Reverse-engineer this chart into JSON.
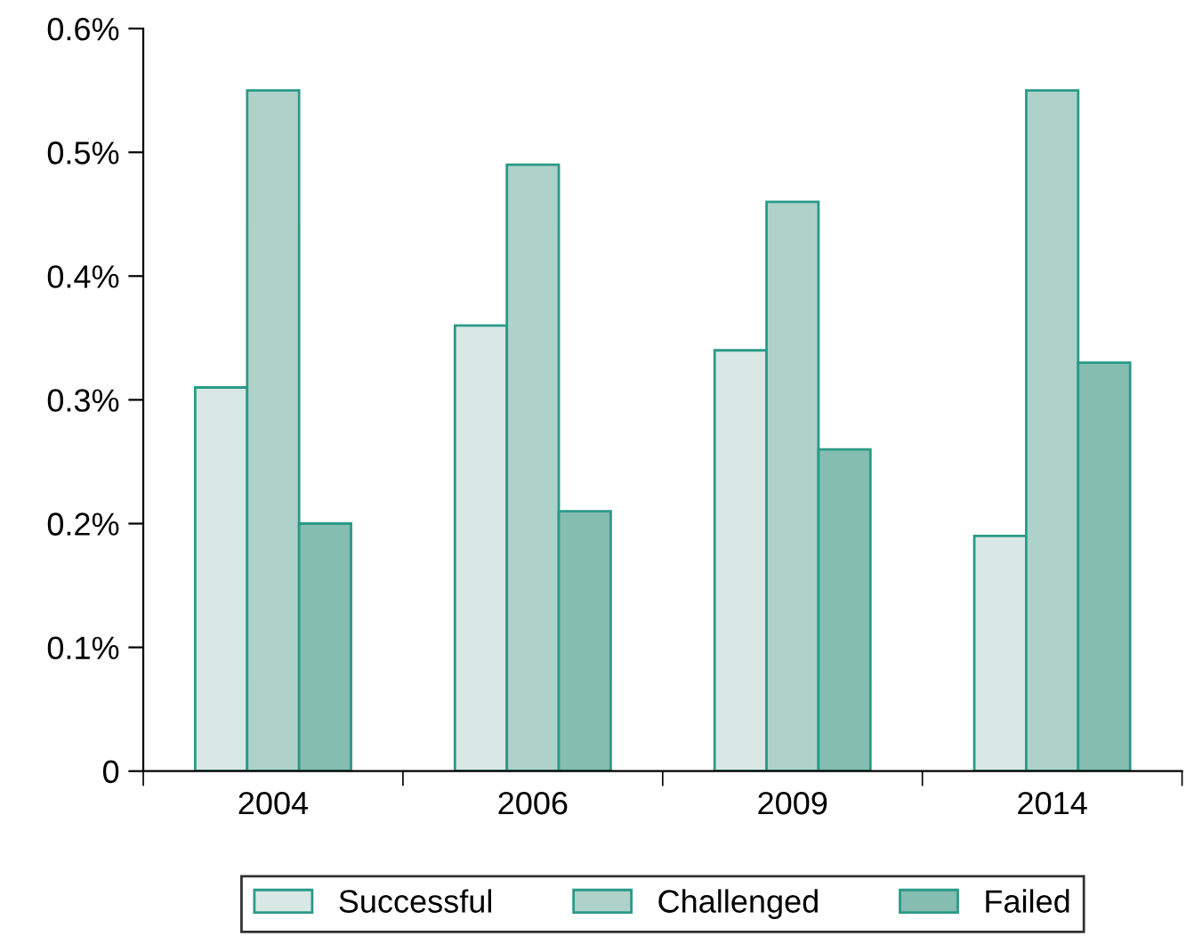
{
  "chart_data": {
    "type": "bar",
    "categories": [
      "2004",
      "2006",
      "2009",
      "2014"
    ],
    "series": [
      {
        "name": "Successful",
        "color": "#d9e8e4",
        "values": [
          0.31,
          0.36,
          0.34,
          0.19
        ]
      },
      {
        "name": "Challenged",
        "color": "#aed2c9",
        "values": [
          0.55,
          0.49,
          0.46,
          0.55
        ]
      },
      {
        "name": "Failed",
        "color": "#85bdb1",
        "values": [
          0.2,
          0.21,
          0.26,
          0.33
        ]
      }
    ],
    "ylim": [
      0,
      0.6
    ],
    "yticks": [
      0,
      {
        "value": 0.1,
        "label": "0.1%"
      },
      {
        "value": 0.2,
        "label": "0.2%"
      },
      {
        "value": 0.3,
        "label": "0.3%"
      },
      {
        "value": 0.4,
        "label": "0.4%"
      },
      {
        "value": 0.5,
        "label": "0.5%"
      },
      {
        "value": 0.6,
        "label": "0.6%"
      }
    ],
    "grid": false,
    "legend": "bottom"
  }
}
